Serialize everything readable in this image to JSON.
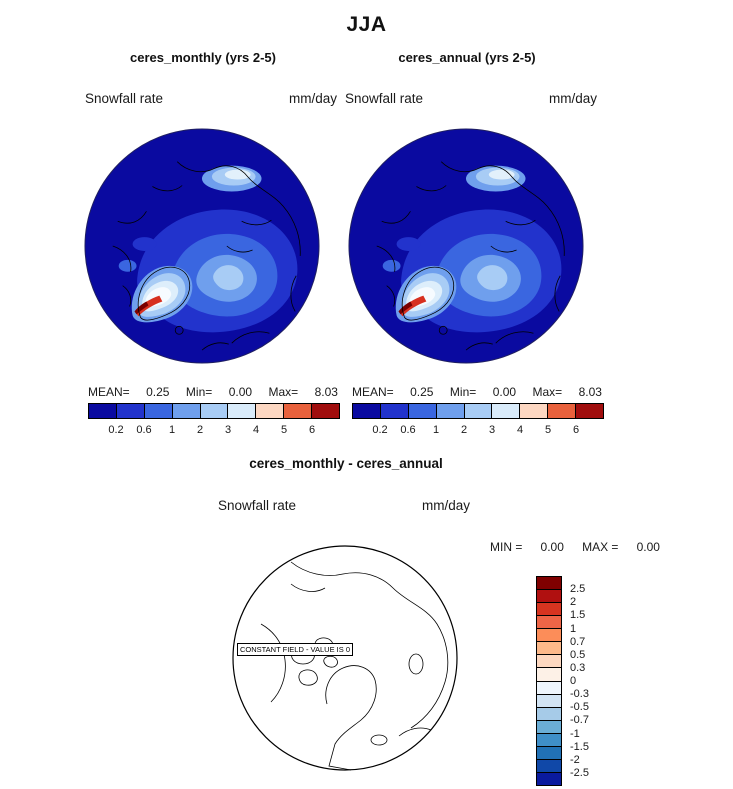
{
  "page": {
    "title": "JJA"
  },
  "top_row": {
    "panels": [
      {
        "title": "ceres_monthly (yrs 2-5)",
        "field_label": "Snowfall rate",
        "units": "mm/day",
        "stats": [
          {
            "label": "MEAN=",
            "value": "0.25"
          },
          {
            "label": "Min=",
            "value": "0.00"
          },
          {
            "label": "Max=",
            "value": "8.03"
          }
        ]
      },
      {
        "title": "ceres_annual (yrs 2-5)",
        "field_label": "Snowfall rate",
        "units": "mm/day",
        "stats": [
          {
            "label": "MEAN=",
            "value": "0.25"
          },
          {
            "label": "Min=",
            "value": "0.00"
          },
          {
            "label": "Max=",
            "value": "8.03"
          }
        ]
      }
    ],
    "colorbar": {
      "ticks": [
        "0.2",
        "0.6",
        "1",
        "2",
        "3",
        "4",
        "5",
        "6"
      ],
      "colors": [
        "#0a0aa0",
        "#2233cc",
        "#3a66e0",
        "#6f9fed",
        "#a8ccf5",
        "#d9ebfa",
        "#fcd7c2",
        "#e8613c",
        "#a00d0d"
      ]
    }
  },
  "diff": {
    "title": "ceres_monthly - ceres_annual",
    "field_label": "Snowfall rate",
    "units": "mm/day",
    "stats": [
      {
        "label": "MIN =",
        "value": "0.00"
      },
      {
        "label": "MAX =",
        "value": "0.00"
      }
    ],
    "constant_field_text": "CONSTANT FIELD - VALUE IS 0",
    "colorbar": {
      "ticks": [
        "2.5",
        "2",
        "1.5",
        "1",
        "0.7",
        "0.5",
        "0.3",
        "0",
        "-0.3",
        "-0.5",
        "-0.7",
        "-1",
        "-1.5",
        "-2",
        "-2.5"
      ],
      "colors": [
        "#7f0000",
        "#b01010",
        "#d73420",
        "#ee6547",
        "#fc8d59",
        "#fdb98a",
        "#fdd8c0",
        "#fdf1e7",
        "#eef5fc",
        "#d2e4f4",
        "#a6cbe8",
        "#6baed6",
        "#3f8fc8",
        "#2171b5",
        "#1048a8",
        "#0a1a9e"
      ]
    }
  },
  "chart_data": {
    "type": "heatmap",
    "subtype": "polar-stereographic-map-panels",
    "title": "JJA",
    "panels": [
      {
        "name": "ceres_monthly (yrs 2-5)",
        "variable": "Snowfall rate",
        "units": "mm/day",
        "mean": 0.25,
        "min": 0.0,
        "max": 8.03,
        "colorbar_levels": [
          0.2,
          0.6,
          1,
          2,
          3,
          4,
          5,
          6
        ],
        "legend_position": "horizontal, below map"
      },
      {
        "name": "ceres_annual (yrs 2-5)",
        "variable": "Snowfall rate",
        "units": "mm/day",
        "mean": 0.25,
        "min": 0.0,
        "max": 8.03,
        "colorbar_levels": [
          0.2,
          0.6,
          1,
          2,
          3,
          4,
          5,
          6
        ],
        "legend_position": "horizontal, below map"
      },
      {
        "name": "ceres_monthly - ceres_annual",
        "variable": "Snowfall rate",
        "units": "mm/day",
        "min": 0.0,
        "max": 0.0,
        "note": "CONSTANT FIELD - VALUE IS 0",
        "colorbar_levels": [
          2.5,
          2,
          1.5,
          1,
          0.7,
          0.5,
          0.3,
          0,
          -0.3,
          -0.5,
          -0.7,
          -1,
          -1.5,
          -2,
          -2.5
        ],
        "legend_position": "vertical, right of map"
      }
    ]
  }
}
